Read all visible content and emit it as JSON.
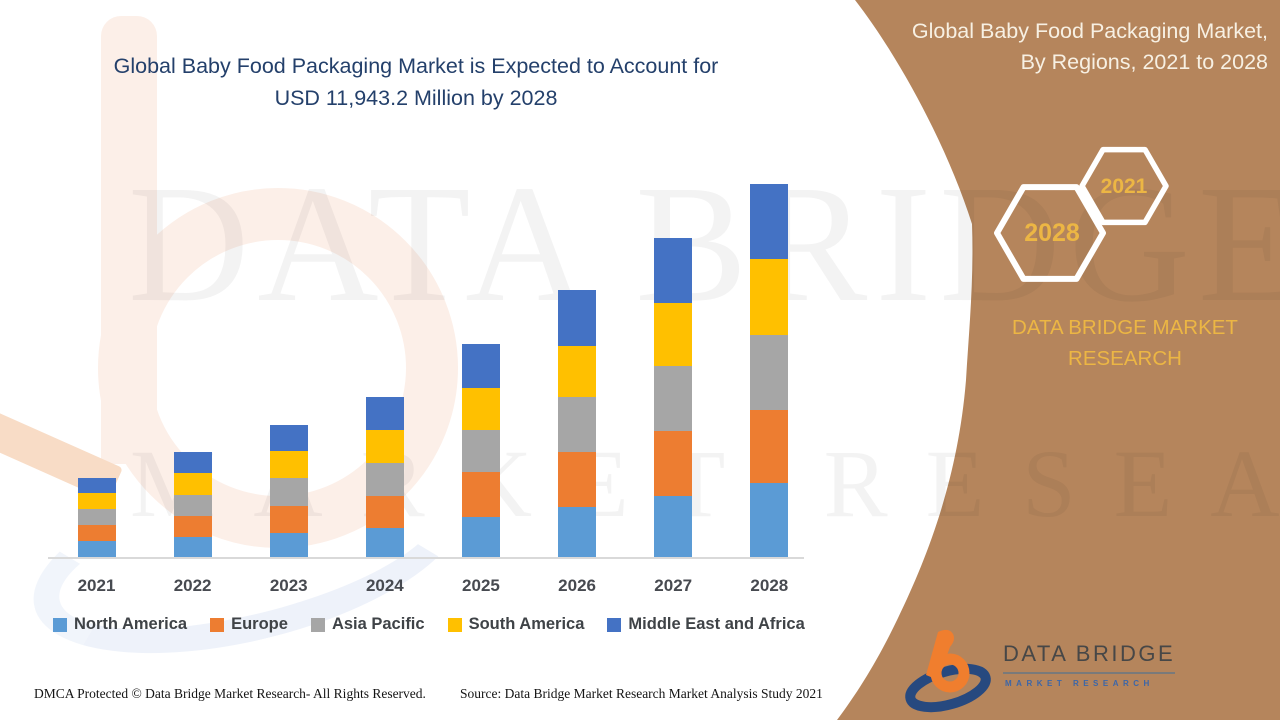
{
  "chart_title": {
    "line1": "Global Baby Food Packaging Market is Expected to Account for",
    "line2": "USD 11,943.2 Million by 2028"
  },
  "chart_data": {
    "type": "bar",
    "stacked": true,
    "units": "USD Million (values estimated from bar heights; 2028 total stated as 11,943.2)",
    "categories": [
      "2021",
      "2022",
      "2023",
      "2024",
      "2025",
      "2026",
      "2027",
      "2028"
    ],
    "series": [
      {
        "name": "North America",
        "color": "#5B9BD5",
        "values": [
          540,
          670,
          800,
          960,
          1310,
          1630,
          1980,
          2394.6
        ]
      },
      {
        "name": "Europe",
        "color": "#ED7D31",
        "values": [
          510,
          670,
          860,
          1020,
          1435,
          1755,
          2075,
          2330.7
        ]
      },
      {
        "name": "Asia Pacific",
        "color": "#A6A6A6",
        "values": [
          510,
          670,
          895,
          1055,
          1340,
          1755,
          2075,
          2394.6
        ]
      },
      {
        "name": "South America",
        "color": "#FFC000",
        "values": [
          510,
          700,
          860,
          1055,
          1340,
          1630,
          2010,
          2428.7
        ]
      },
      {
        "name": "Middle East and Africa",
        "color": "#4472C4",
        "values": [
          480,
          670,
          830,
          1050,
          1405,
          1790,
          2075,
          2394.6
        ]
      }
    ],
    "totals": [
      2550,
      3380,
      4245,
      5140,
      6830,
      8560,
      10215,
      11943.2
    ],
    "ylim": [
      0,
      12000
    ],
    "grid": false,
    "legend_position": "bottom"
  },
  "panel": {
    "bg_color": "#B5855C",
    "accent_gold": "#ECB644",
    "title_line1": "Global Baby Food Packaging Market,",
    "title_line2": "By Regions, 2021 to 2028",
    "hexagons": [
      {
        "label": "2021"
      },
      {
        "label": "2028"
      }
    ],
    "brand_heading": "DATA BRIDGE MARKET RESEARCH",
    "logo": {
      "name": "DATA BRIDGE",
      "sub": "MARKET RESEARCH"
    }
  },
  "watermark": {
    "line1": "DATA BRIDGE",
    "line2": "MARKET RESEARCH"
  },
  "footer": {
    "left": "DMCA Protected © Data Bridge Market Research- All Rights Reserved.",
    "right": "Source: Data Bridge Market Research Market Analysis Study 2021"
  }
}
